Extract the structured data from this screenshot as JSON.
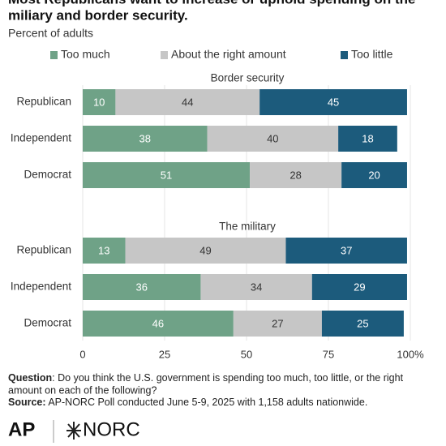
{
  "chart_data": {
    "type": "bar",
    "orientation": "horizontal",
    "stacked": true,
    "title": [
      "Most Republicans want to increase or uphold spending on the",
      "miliary and border security."
    ],
    "subtitle": "Percent of adults",
    "legend": [
      {
        "name": "Too much",
        "color": "#6fa287"
      },
      {
        "name": "About the right amount",
        "color": "#c6c6c6"
      },
      {
        "name": "Too little",
        "color": "#1c5b7c"
      }
    ],
    "panels": [
      {
        "title": "Border security",
        "categories": [
          "Republican",
          "Independent",
          "Democrat"
        ],
        "series": [
          {
            "values": [
              10,
              38,
              51
            ]
          },
          {
            "values": [
              44,
              40,
              28
            ]
          },
          {
            "values": [
              45,
              18,
              20
            ]
          }
        ]
      },
      {
        "title": "The military",
        "categories": [
          "Republican",
          "Independent",
          "Democrat"
        ],
        "series": [
          {
            "values": [
              13,
              36,
              46
            ]
          },
          {
            "values": [
              49,
              34,
              27
            ]
          },
          {
            "values": [
              37,
              29,
              25
            ]
          }
        ]
      }
    ],
    "xlim": [
      0,
      100
    ],
    "xticks": [
      0,
      25,
      50,
      75,
      {
        "value": 100,
        "label": "100%"
      }
    ],
    "grid": true,
    "question_label": "Question",
    "question_text": [
      ": Do you think the U.S. government is spending too much, too little, or the right",
      "amount on each of the following?"
    ],
    "source_label": "Source:",
    "source_text": " AP-NORC Poll conducted June 5-9, 2025 with 1,158 adults nationwide.",
    "logos": [
      "AP",
      "NORC"
    ]
  }
}
